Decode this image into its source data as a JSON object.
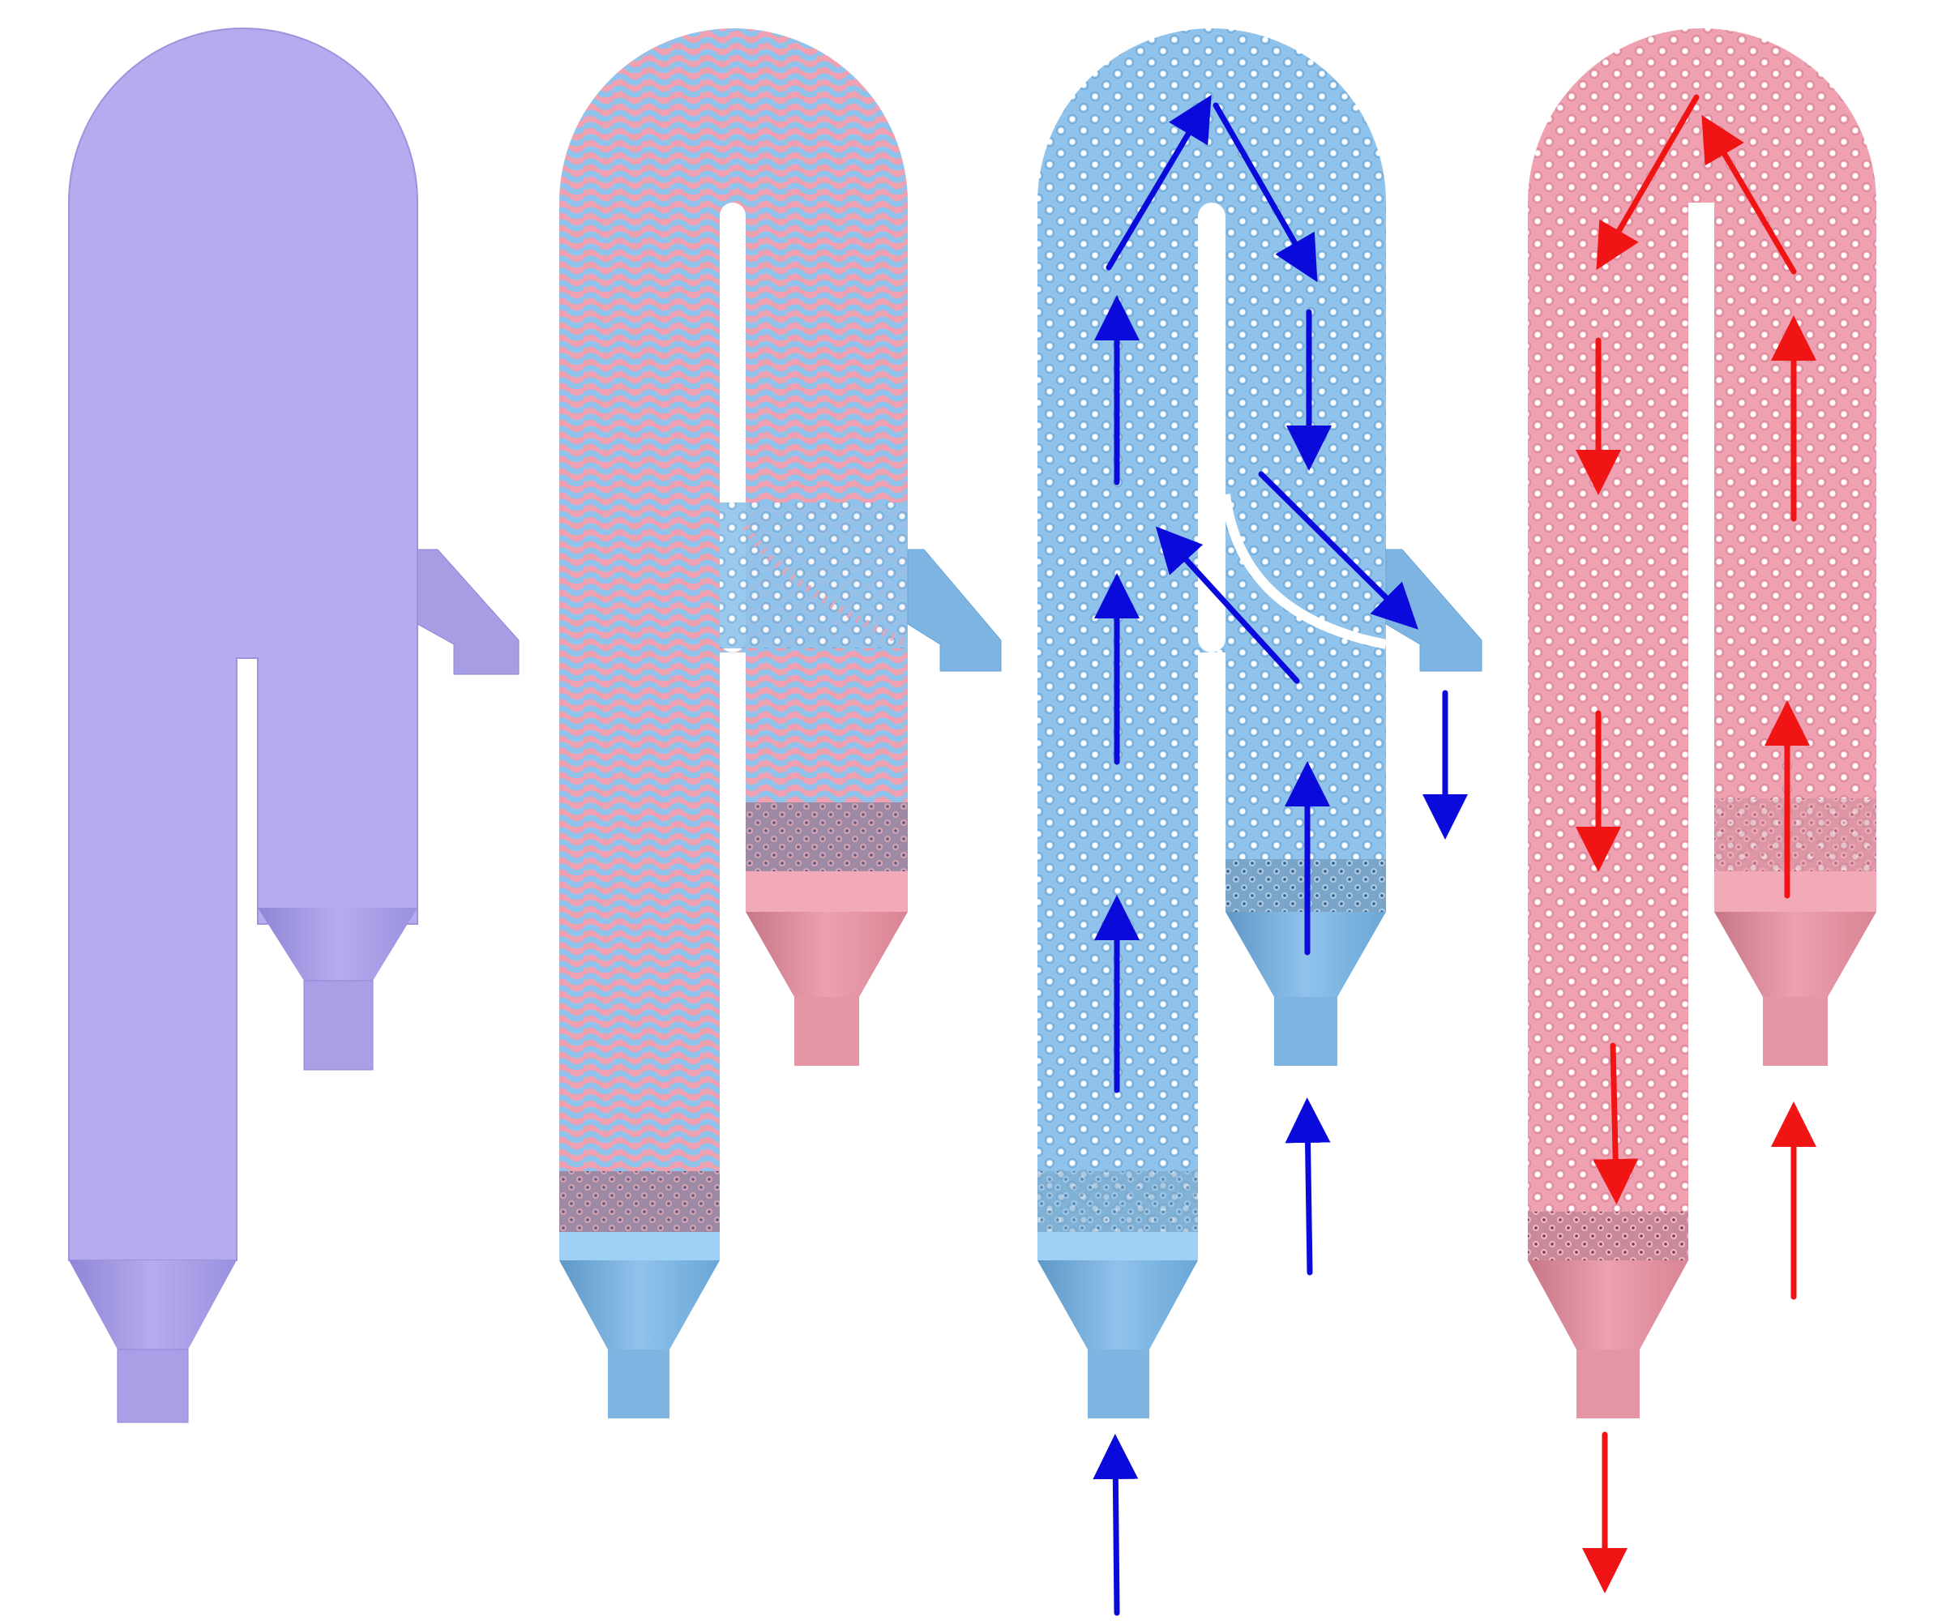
{
  "figure": {
    "panels": [
      {
        "id": "panel-1",
        "content": "solid-envelope"
      },
      {
        "id": "panel-2",
        "content": "two-fluid-lattice"
      },
      {
        "id": "panel-3",
        "content": "cold-fluid-domain-with-flow"
      },
      {
        "id": "panel-4",
        "content": "hot-fluid-domain-with-flow"
      }
    ],
    "colors": {
      "envelope": "#b5abee",
      "envelope_dark": "#9d93dd",
      "fluid_blue": "#8fc3ec",
      "fluid_blue_dark": "#6aa6d6",
      "fluid_pink": "#f0a1b1",
      "fluid_pink_dark": "#d98494",
      "arrow_blue": "#0a0adb",
      "arrow_red": "#f01414"
    },
    "icons": [
      "arrow-up-icon",
      "arrow-down-icon",
      "arrow-diagonal-icon"
    ]
  }
}
